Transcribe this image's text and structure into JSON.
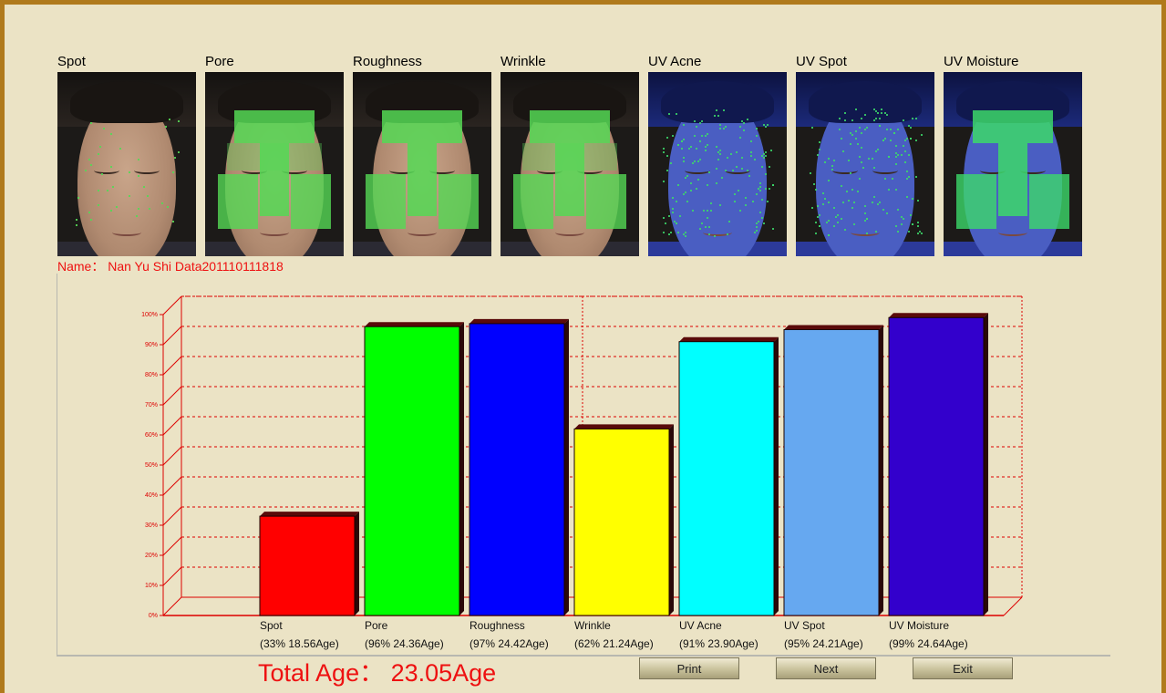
{
  "thumbnails": [
    {
      "label": "Spot",
      "uv": false,
      "overlay": "sparse"
    },
    {
      "label": "Pore",
      "uv": false,
      "overlay": "dense"
    },
    {
      "label": "Roughness",
      "uv": false,
      "overlay": "t-zone"
    },
    {
      "label": "Wrinkle",
      "uv": false,
      "overlay": "dense"
    },
    {
      "label": "UV Acne",
      "uv": true,
      "overlay": "scatter"
    },
    {
      "label": "UV Spot",
      "uv": true,
      "overlay": "scatter"
    },
    {
      "label": "UV Moisture",
      "uv": true,
      "overlay": "t-zone"
    }
  ],
  "subject": {
    "name_line": "Name：  Nan Yu Shi Data201110111818"
  },
  "chart_data": {
    "type": "bar",
    "categories": [
      "Spot",
      "Pore",
      "Roughness",
      "Wrinkle",
      "UV Acne",
      "UV Spot",
      "UV Moisture"
    ],
    "values": [
      33,
      96,
      97,
      62,
      91,
      95,
      99
    ],
    "sublabels": [
      "(33% 18.56Age)",
      "(96% 24.36Age)",
      "(97% 24.42Age)",
      "(62% 21.24Age)",
      "(91% 23.90Age)",
      "(95% 24.21Age)",
      "(99% 24.64Age)"
    ],
    "colors": [
      "#ff0000",
      "#00ff00",
      "#0000ff",
      "#ffff00",
      "#00ffff",
      "#66a8f0",
      "#3300cc"
    ],
    "yticks": [
      "0%",
      "10%",
      "20%",
      "30%",
      "40%",
      "50%",
      "60%",
      "70%",
      "80%",
      "90%",
      "100%"
    ],
    "ylim": [
      0,
      100
    ],
    "grid": true,
    "grid_color": "#dd0000"
  },
  "summary": {
    "total_age": "Total Age：  23.05Age"
  },
  "buttons": {
    "print": "Print",
    "next": "Next",
    "exit": "Exit"
  },
  "colors": {
    "background": "#ebe3c5",
    "frame": "#b07a1c",
    "accent_text": "#ee1111",
    "overlay_green": "#55d855"
  }
}
